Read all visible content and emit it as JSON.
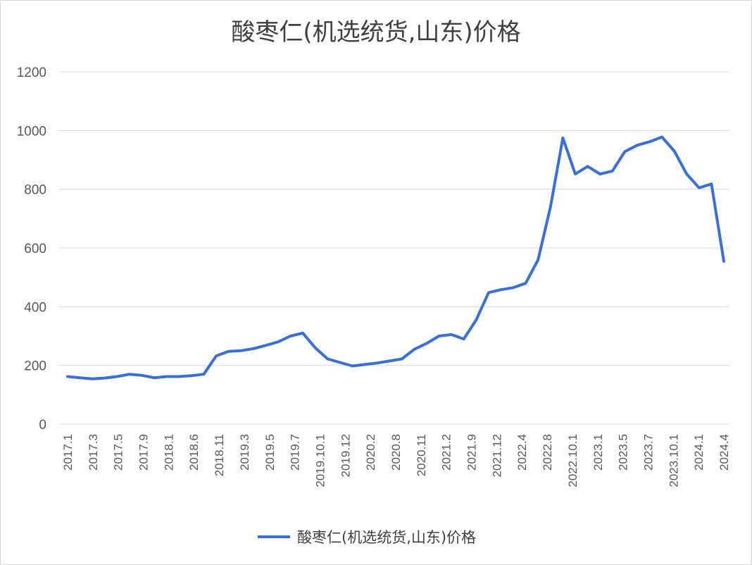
{
  "chart_data": {
    "type": "line",
    "title": "酸枣仁(机选统货,山东)价格",
    "xlabel": "",
    "ylabel": "",
    "ylim": [
      0,
      1200
    ],
    "yticks": [
      "0",
      "200",
      "400",
      "600",
      "800",
      "1000",
      "1200"
    ],
    "grid": true,
    "legend": "bottom",
    "color": "#3a6fd8",
    "x_tick_labels": [
      "2017.1",
      "2017.3",
      "2017.5",
      "2017.9",
      "2018.1",
      "2018.6",
      "2018.11",
      "2019.3",
      "2019.5",
      "2019.7",
      "2019.10.1",
      "2019.12",
      "2020.2",
      "2020.8",
      "2020.11",
      "2021.2",
      "2021.9",
      "2021.12",
      "2022.4",
      "2022.8",
      "2022.10.1",
      "2023.1",
      "2023.5",
      "2023.7",
      "2023.10.1",
      "2024.1",
      "2024.4"
    ],
    "series": [
      {
        "name": "酸枣仁(机选统货,山东)价格",
        "values": [
          162,
          158,
          154,
          157,
          162,
          170,
          166,
          158,
          162,
          162,
          165,
          170,
          232,
          248,
          250,
          257,
          268,
          280,
          300,
          310,
          260,
          222,
          210,
          198,
          203,
          208,
          215,
          222,
          255,
          275,
          300,
          305,
          290,
          355,
          448,
          458,
          465,
          480,
          560,
          740,
          975,
          852,
          878,
          852,
          862,
          928,
          950,
          962,
          978,
          930,
          852,
          805,
          818,
          555
        ]
      }
    ]
  }
}
